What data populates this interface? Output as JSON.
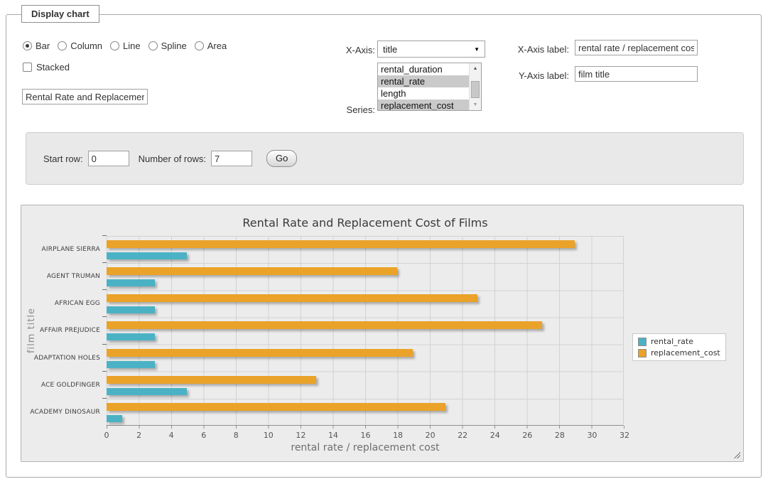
{
  "form": {
    "legend": "Display chart",
    "chart_types": {
      "options": [
        "Bar",
        "Column",
        "Line",
        "Spline",
        "Area"
      ],
      "selected": "Bar"
    },
    "stacked": {
      "label": "Stacked",
      "checked": false
    },
    "title_input": {
      "value": "Rental Rate and Replacement Cost of Films"
    },
    "x_axis": {
      "label": "X-Axis:",
      "selected": "title"
    },
    "series_select": {
      "label": "Series:",
      "options": [
        {
          "label": "rental_duration",
          "selected": false
        },
        {
          "label": "rental_rate",
          "selected": true
        },
        {
          "label": "length",
          "selected": false
        },
        {
          "label": "replacement_cost",
          "selected": true
        }
      ]
    },
    "x_axis_label": {
      "label": "X-Axis label:",
      "value": "rental rate / replacement cost"
    },
    "y_axis_label": {
      "label": "Y-Axis label:",
      "value": "film title"
    },
    "rows": {
      "start_label": "Start row:",
      "start_value": "0",
      "count_label": "Number of rows:",
      "count_value": "7",
      "go_label": "Go"
    }
  },
  "chart_data": {
    "type": "bar",
    "orientation": "horizontal",
    "title": "Rental Rate and Replacement Cost of Films",
    "xlabel": "rental rate / replacement cost",
    "ylabel": "film title",
    "categories": [
      "AIRPLANE SIERRA",
      "AGENT TRUMAN",
      "AFRICAN EGG",
      "AFFAIR PREJUDICE",
      "ADAPTATION HOLES",
      "ACE GOLDFINGER",
      "ACADEMY DINOSAUR"
    ],
    "series": [
      {
        "name": "rental_rate",
        "color": "#4bb2c5",
        "values": [
          4.99,
          2.99,
          2.99,
          2.99,
          2.99,
          4.99,
          0.99
        ]
      },
      {
        "name": "replacement_cost",
        "color": "#eaa228",
        "values": [
          28.99,
          17.99,
          22.99,
          26.99,
          18.99,
          12.99,
          20.99
        ]
      }
    ],
    "xlim": [
      0,
      32
    ],
    "xticks": [
      0,
      2,
      4,
      6,
      8,
      10,
      12,
      14,
      16,
      18,
      20,
      22,
      24,
      26,
      28,
      30,
      32
    ],
    "grid": true,
    "legend_position": "right"
  }
}
